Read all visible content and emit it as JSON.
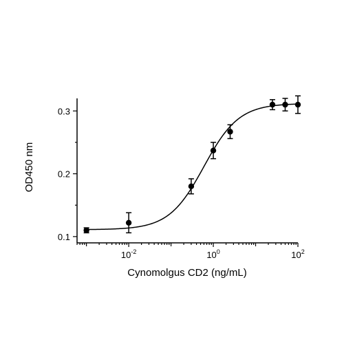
{
  "chart_data": {
    "type": "scatter",
    "title": "",
    "xlabel": "Cynomolgus CD2 (ng/mL)",
    "ylabel": "OD450 nm",
    "x_scale": "log10",
    "xlim": [
      0.0006,
      100
    ],
    "ylim": [
      0.09,
      0.32
    ],
    "x_ticks": [
      {
        "value": 0.01,
        "base": "10",
        "exponent": "-2"
      },
      {
        "value": 1,
        "base": "10",
        "exponent": "0"
      },
      {
        "value": 100,
        "base": "10",
        "exponent": "2"
      }
    ],
    "y_ticks": [
      {
        "value": 0.1,
        "label": "0.1"
      },
      {
        "value": 0.2,
        "label": "0.2"
      },
      {
        "value": 0.3,
        "label": "0.3"
      }
    ],
    "series": [
      {
        "points": [
          {
            "x": 0.001,
            "y": 0.11,
            "err": 0.004
          },
          {
            "x": 0.01,
            "y": 0.122,
            "err": 0.016
          },
          {
            "x": 0.3,
            "y": 0.18,
            "err": 0.012
          },
          {
            "x": 1.0,
            "y": 0.237,
            "err": 0.013
          },
          {
            "x": 2.5,
            "y": 0.267,
            "err": 0.011
          },
          {
            "x": 25,
            "y": 0.31,
            "err": 0.008
          },
          {
            "x": 50,
            "y": 0.31,
            "err": 0.01
          },
          {
            "x": 100,
            "y": 0.31,
            "err": 0.014
          }
        ],
        "fit_curve": {
          "model": "4PL",
          "bottom": 0.111,
          "top": 0.312,
          "ec50": 0.6,
          "hill": 1.05
        }
      }
    ],
    "grid": false,
    "legend": "none",
    "color": "#000000"
  }
}
